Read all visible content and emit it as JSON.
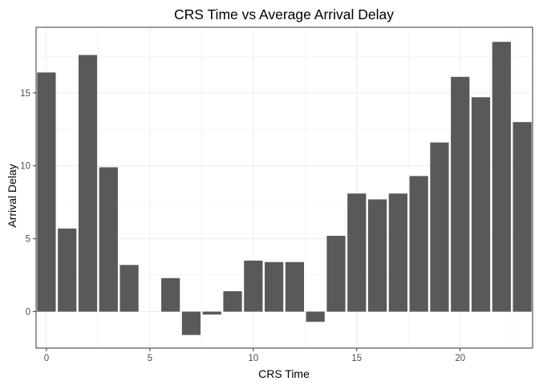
{
  "chart_data": {
    "type": "bar",
    "title": "CRS Time vs Average Arrival Delay",
    "xlabel": "CRS Time",
    "ylabel": "Arrival Delay",
    "x": [
      0,
      1,
      2,
      3,
      4,
      5,
      6,
      7,
      8,
      9,
      10,
      11,
      12,
      13,
      14,
      15,
      16,
      17,
      18,
      19,
      20,
      21,
      22,
      23
    ],
    "values": [
      16.4,
      5.7,
      17.6,
      9.9,
      3.2,
      0,
      2.3,
      -1.6,
      -0.2,
      1.4,
      3.5,
      3.4,
      3.4,
      -0.7,
      5.2,
      8.1,
      7.7,
      8.1,
      9.3,
      11.6,
      16.1,
      14.7,
      18.5,
      13.0
    ],
    "xlim": [
      -0.5,
      23.5
    ],
    "ylim": [
      -2.5,
      19.5
    ],
    "xticks": [
      0,
      5,
      10,
      15,
      20
    ],
    "yticks": [
      0,
      5,
      10,
      15
    ],
    "bar_color": "#595959",
    "grid": true,
    "legend": "none"
  }
}
